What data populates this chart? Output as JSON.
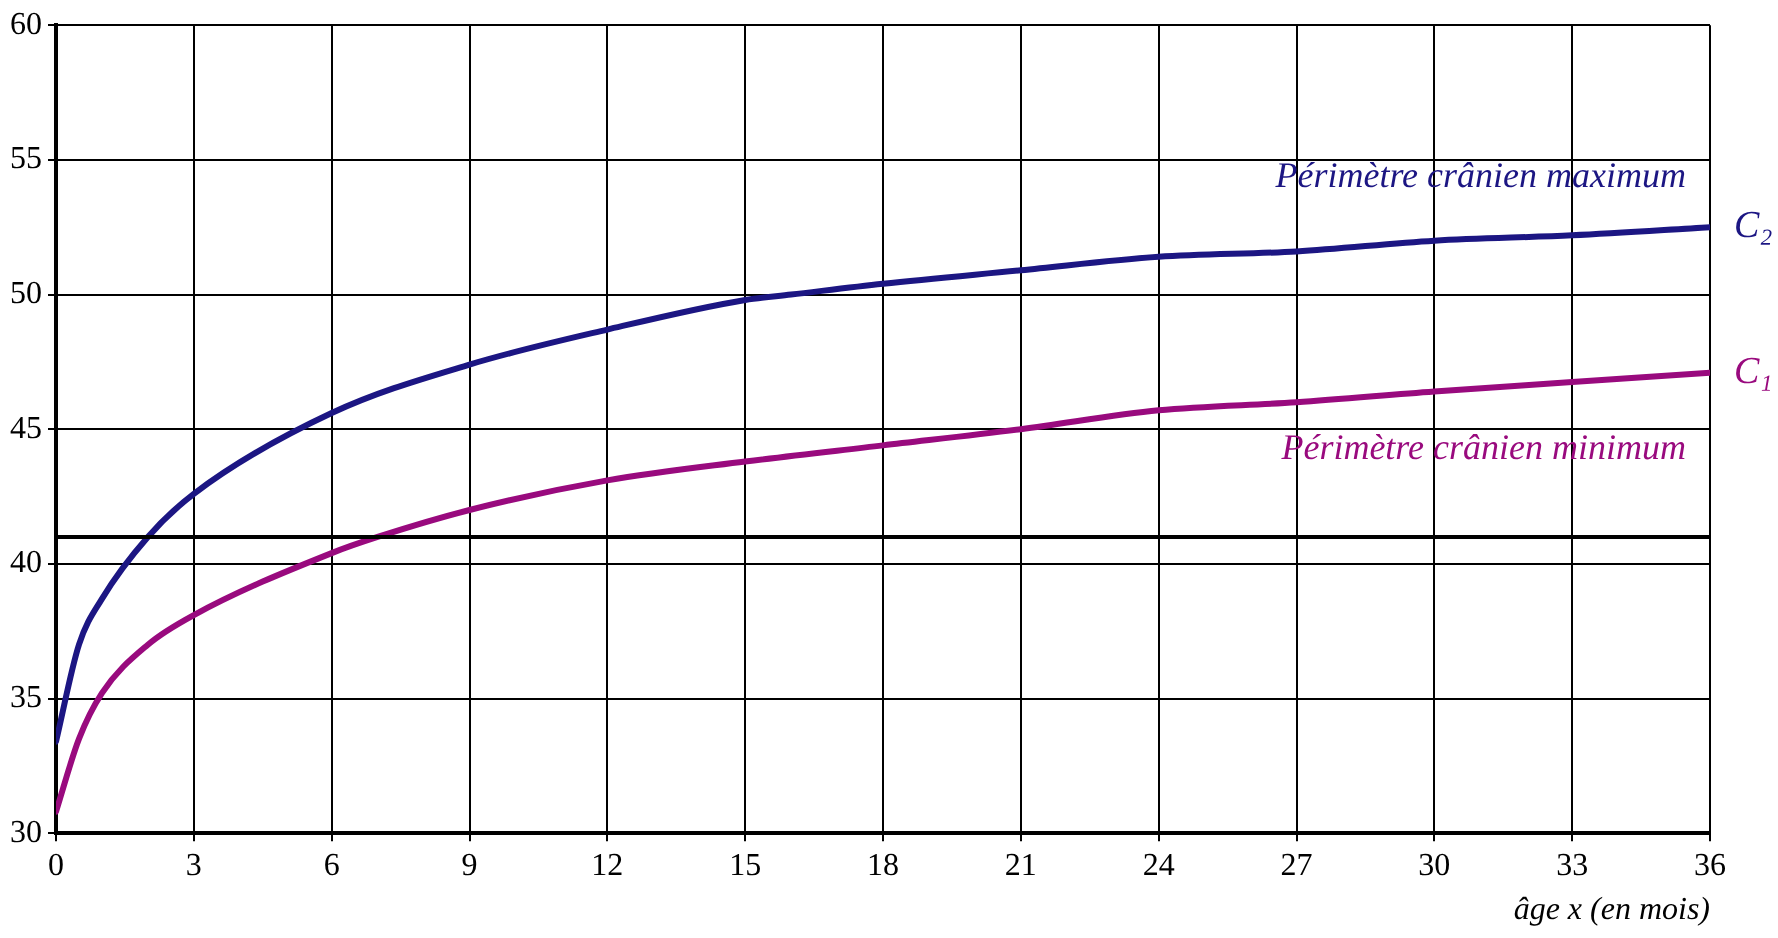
{
  "chart_data": {
    "type": "line",
    "xlabel": "âge x (en mois)",
    "xlim": [
      0,
      36
    ],
    "xticks": [
      0,
      3,
      6,
      9,
      12,
      15,
      18,
      21,
      24,
      27,
      30,
      33,
      36
    ],
    "ylim": [
      30,
      60
    ],
    "yticks": [
      30,
      35,
      40,
      45,
      50,
      55,
      60
    ],
    "grid": true,
    "legend": false,
    "marker": "none",
    "line_style": "solid",
    "series": [
      {
        "name": "C₂",
        "color": "#1c1683",
        "x": [
          0,
          0.5,
          1,
          2,
          3,
          6,
          9,
          12,
          15,
          16,
          18,
          21,
          24,
          27,
          30,
          33,
          36
        ],
        "values": [
          33.4,
          37,
          38.7,
          41,
          42.6,
          45.6,
          47.4,
          48.7,
          49.8,
          50,
          50.4,
          50.9,
          51.4,
          51.6,
          52,
          52.2,
          52.5
        ]
      },
      {
        "name": "C₁",
        "color": "#990a7e",
        "x": [
          0,
          0.5,
          1,
          2,
          3,
          6,
          7,
          9,
          12,
          15,
          18,
          21,
          24,
          27,
          30,
          33,
          36
        ],
        "values": [
          30.8,
          33.5,
          35.2,
          37,
          38.1,
          40.4,
          41,
          42,
          43.1,
          43.8,
          44.4,
          45,
          45.7,
          46,
          46.4,
          46.75,
          47.1
        ]
      }
    ],
    "ref_lines": [
      {
        "axis": "y",
        "value": 41,
        "color": "#000000"
      }
    ],
    "annotations": [
      "Périmètre crânien maximum",
      "Périmètre crânien minimum"
    ]
  }
}
